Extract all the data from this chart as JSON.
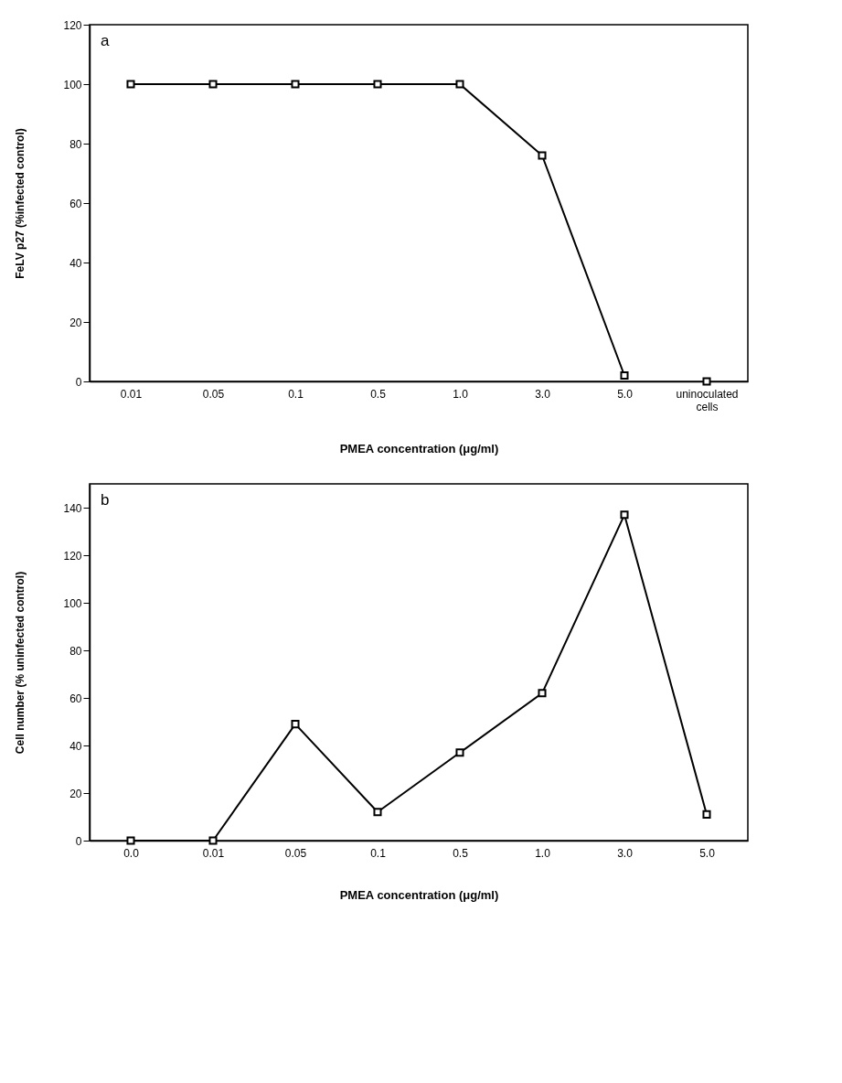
{
  "chart_data": [
    {
      "type": "line",
      "categories": [
        "0.01",
        "0.05",
        "0.1",
        "0.5",
        "1.0",
        "3.0",
        "5.0",
        "uninoculated cells"
      ],
      "xlabel": "PMEA concentration (μg/ml)",
      "ylabel": "FeLV p27 (%infected control)",
      "annotations": [
        "a"
      ],
      "ylim": [
        0,
        120
      ],
      "yticks": [
        0,
        20,
        40,
        60,
        80,
        100,
        120
      ],
      "grid": false,
      "marker": "square",
      "line_style": "solid",
      "series": [
        {
          "color": "#000000",
          "values": [
            100,
            100,
            100,
            100,
            100,
            76,
            2,
            null
          ]
        },
        {
          "color": "#000000",
          "values": [
            null,
            null,
            null,
            null,
            null,
            null,
            null,
            0
          ]
        }
      ]
    },
    {
      "type": "line",
      "categories": [
        "0.0",
        "0.01",
        "0.05",
        "0.1",
        "0.5",
        "1.0",
        "3.0",
        "5.0"
      ],
      "xlabel": "PMEA concentration (μg/ml)",
      "ylabel": "Cell number (% uninfected control)",
      "annotations": [
        "b"
      ],
      "ylim": [
        0,
        150
      ],
      "yticks": [
        0,
        20,
        40,
        60,
        80,
        100,
        120,
        140
      ],
      "grid": false,
      "marker": "square",
      "line_style": "solid",
      "series": [
        {
          "color": "#000000",
          "values": [
            0,
            0,
            49,
            12,
            37,
            62,
            137,
            11
          ]
        }
      ]
    }
  ]
}
